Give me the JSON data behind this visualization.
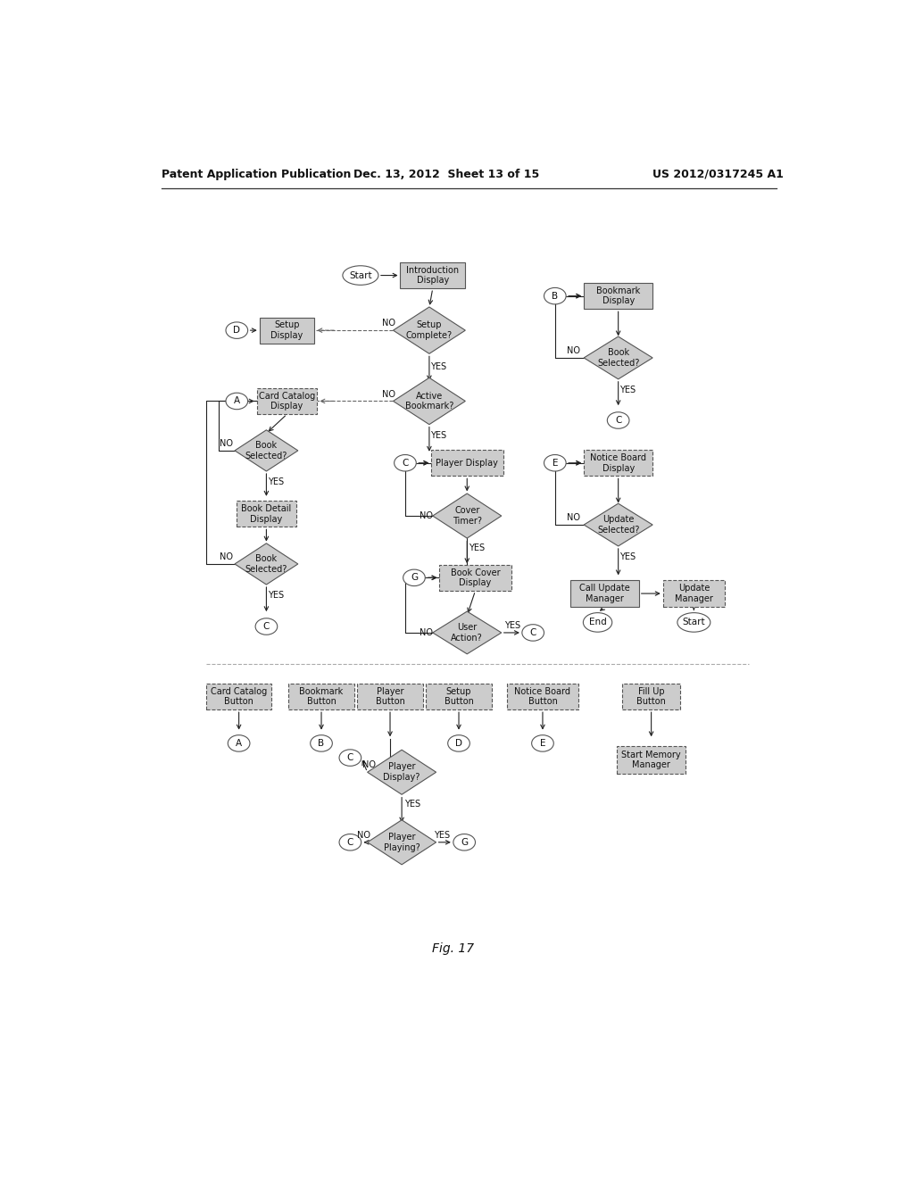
{
  "header_left": "Patent Application Publication",
  "header_mid": "Dec. 13, 2012  Sheet 13 of 15",
  "header_right": "US 2012/0317245 A1",
  "figure_label": "Fig. 17",
  "bg_color": "#ffffff",
  "box_fill": "#cccccc",
  "box_fill_light": "#dddddd",
  "box_edge": "#555555",
  "text_color": "#111111",
  "arrow_color": "#222222",
  "dashed_color": "#666666"
}
